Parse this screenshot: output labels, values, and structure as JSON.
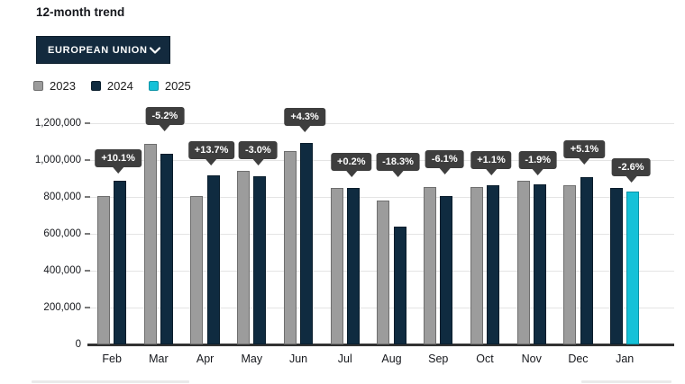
{
  "header": {
    "title": "12-month trend"
  },
  "filter": {
    "selected_option": "EUROPEAN UNION",
    "chevron_icon": "chevron-down",
    "background_color": "#132a3e",
    "text_color": "#ffffff"
  },
  "legend": [
    {
      "year": "2023",
      "color": "#9c9c9c",
      "border": "#6e6e6e"
    },
    {
      "year": "2024",
      "color": "#0f2b40",
      "border": "#091d2c"
    },
    {
      "year": "2025",
      "color": "#15c1d8",
      "border": "#0a93a6"
    }
  ],
  "chart_data": {
    "type": "bar",
    "title": "12-month trend",
    "xlabel": "",
    "ylabel": "",
    "ylim": [
      0,
      1200000
    ],
    "grid": true,
    "legend_position": "top-left",
    "categories": [
      "Feb",
      "Mar",
      "Apr",
      "May",
      "Jun",
      "Jul",
      "Aug",
      "Sep",
      "Oct",
      "Nov",
      "Dec",
      "Jan"
    ],
    "yticks": [
      "0",
      "200,000",
      "400,000",
      "600,000",
      "800,000",
      "1,000,000",
      "1,200,000"
    ],
    "ytick_values": [
      0,
      200000,
      400000,
      600000,
      800000,
      1000000,
      1200000
    ],
    "series": [
      {
        "name": "2023",
        "color": "#9c9c9c",
        "border": "#6e6e6e",
        "values": [
          805000,
          1090000,
          806000,
          940000,
          1050000,
          848000,
          780000,
          856000,
          854000,
          886000,
          862000,
          null
        ]
      },
      {
        "name": "2024",
        "color": "#0f2b40",
        "border": "#091d2c",
        "values": [
          886000,
          1033000,
          916000,
          912000,
          1095000,
          850000,
          637000,
          804000,
          863000,
          869000,
          906000,
          849000
        ]
      },
      {
        "name": "2025",
        "color": "#15c1d8",
        "border": "#0a93a6",
        "values": [
          null,
          null,
          null,
          null,
          null,
          null,
          null,
          null,
          null,
          null,
          null,
          827000
        ]
      }
    ],
    "change_labels": [
      "+10.1%",
      "-5.2%",
      "+13.7%",
      "-3.0%",
      "+4.3%",
      "+0.2%",
      "-18.3%",
      "-6.1%",
      "+1.1%",
      "-1.9%",
      "+5.1%",
      "-2.6%"
    ],
    "callout_style": {
      "background": "#3e3e3e",
      "text_color": "#ffffff"
    }
  },
  "colors": {
    "gridline": "#e4e4e4",
    "axis": "#333333",
    "text": "#15171c",
    "background": "#ffffff"
  }
}
